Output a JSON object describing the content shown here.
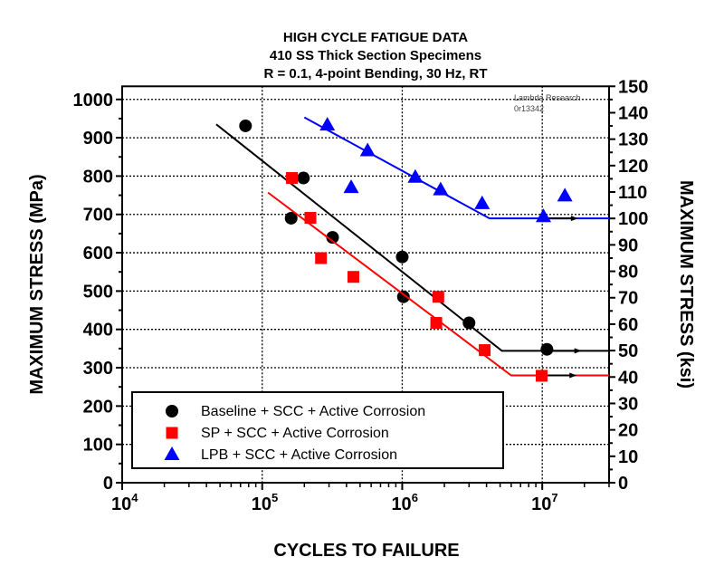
{
  "chart_data": {
    "type": "scatter",
    "title": [
      "HIGH CYCLE FATIGUE DATA",
      "410 SS Thick Section Specimens",
      "R = 0.1, 4-point Bending, 30 Hz, RT"
    ],
    "annotation": [
      "Lambda Research",
      "0r13342"
    ],
    "xlabel": "CYCLES TO FAILURE",
    "ylabel": "MAXIMUM STRESS (MPa)",
    "y2label": "MAXIMUM STRESS (ksi)",
    "xscale": "log",
    "xlim": [
      10000,
      30000000
    ],
    "ylim": [
      0,
      1034.2
    ],
    "y2lim": [
      0,
      150
    ],
    "xticks": [
      {
        "base": "10",
        "exp": "4"
      },
      {
        "base": "10",
        "exp": "5"
      },
      {
        "base": "10",
        "exp": "6"
      },
      {
        "base": "10",
        "exp": "7"
      }
    ],
    "yticks": [
      "0",
      "100",
      "200",
      "300",
      "400",
      "500",
      "600",
      "700",
      "800",
      "900",
      "1000"
    ],
    "y2ticks": [
      "0",
      "10",
      "20",
      "30",
      "40",
      "50",
      "60",
      "70",
      "80",
      "90",
      "100",
      "110",
      "120",
      "130",
      "140",
      "150"
    ],
    "grid": true,
    "legend_position": "bottom-left",
    "series": [
      {
        "name": "Baseline + SCC + Active Corrosion",
        "marker": "circle",
        "color": "#000000",
        "points": [
          [
            76000,
            931
          ],
          [
            197000,
            795
          ],
          [
            161000,
            690
          ],
          [
            318000,
            640
          ],
          [
            1000000,
            589
          ],
          [
            1020000,
            485
          ],
          [
            3000000,
            417
          ],
          [
            10800000,
            348
          ]
        ],
        "fit": [
          [
            47000,
            935
          ],
          [
            5150000,
            344
          ],
          [
            30000000,
            344
          ]
        ],
        "runout_arrow": [
          18000000,
          344
        ]
      },
      {
        "name": "SP + SCC + Active Corrosion",
        "marker": "square",
        "color": "#ff0000",
        "points": [
          [
            163000,
            795
          ],
          [
            221000,
            691
          ],
          [
            263000,
            586
          ],
          [
            448000,
            537
          ],
          [
            1810000,
            485
          ],
          [
            1750000,
            417
          ],
          [
            3880000,
            346
          ],
          [
            9900000,
            279
          ]
        ],
        "fit": [
          [
            110000,
            757
          ],
          [
            6000000,
            280
          ],
          [
            30000000,
            280
          ]
        ],
        "runout_arrow": [
          16600000,
          280
        ]
      },
      {
        "name": "LPB + SCC + Active Corrosion",
        "marker": "triangle",
        "color": "#0000ff",
        "points": [
          [
            292000,
            933
          ],
          [
            566000,
            866
          ],
          [
            1240000,
            797
          ],
          [
            1880000,
            764
          ],
          [
            432000,
            770
          ],
          [
            3720000,
            728
          ],
          [
            10200000,
            694
          ],
          [
            14500000,
            748
          ]
        ],
        "fit": [
          [
            200000,
            953
          ],
          [
            4200000,
            689.5
          ],
          [
            30000000,
            689.5
          ]
        ],
        "runout_arrow": [
          17000000,
          689.5
        ]
      }
    ]
  }
}
